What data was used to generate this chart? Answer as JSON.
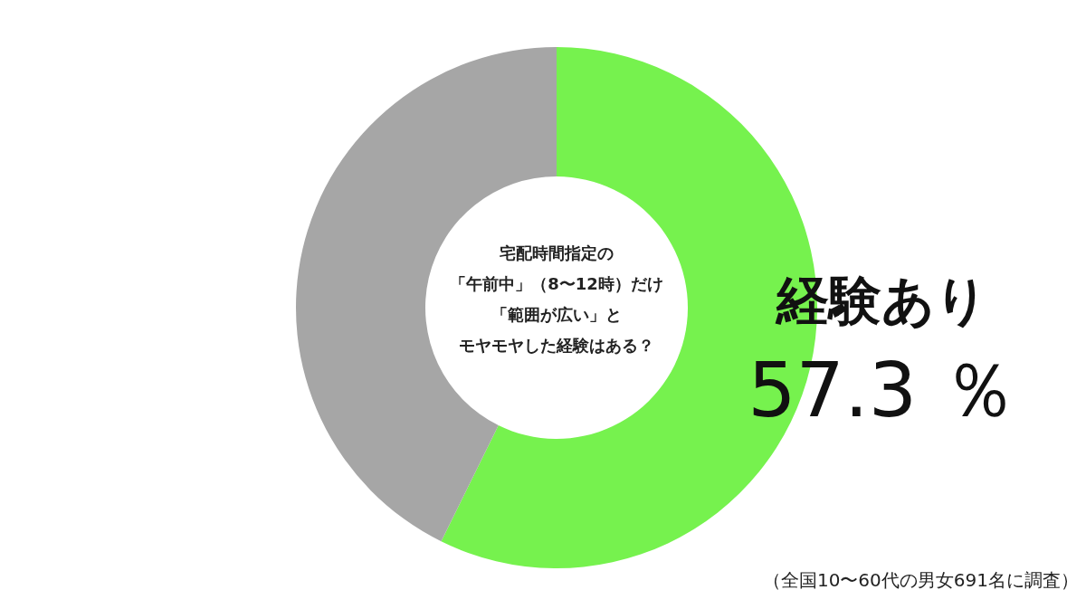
{
  "chart_data": {
    "type": "donut",
    "title": "宅配時間指定の「午前中」（8〜12時）だけ「範囲が広い」とモヤモヤした経験はある？",
    "categories": [
      "経験あり",
      null
    ],
    "values": [
      57.3,
      42.7
    ],
    "colors": [
      "#76f24e",
      "#a6a6a6"
    ],
    "value_labels": [
      "57.3 ％",
      null
    ],
    "annotations": [
      "（全国10〜60代の男女691名に調査）"
    ]
  }
}
